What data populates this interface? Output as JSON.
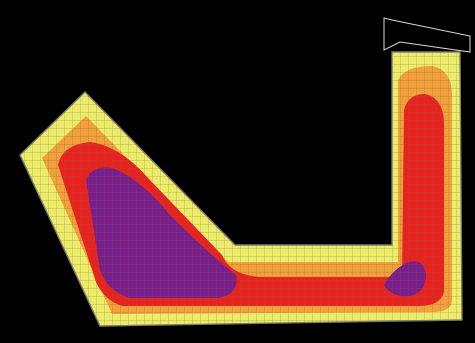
{
  "figure": {
    "subject": "contour-field",
    "colors": {
      "background": "#000000",
      "outline": "#7b7b6a",
      "outer_band": "#ecec6a",
      "middle_band": "#f2a03c",
      "high_band": "#e8231f",
      "core": "#7a1e8c",
      "mesh_line": "#6b6b3a"
    },
    "band_order": [
      "outer_band",
      "middle_band",
      "high_band",
      "core"
    ]
  }
}
